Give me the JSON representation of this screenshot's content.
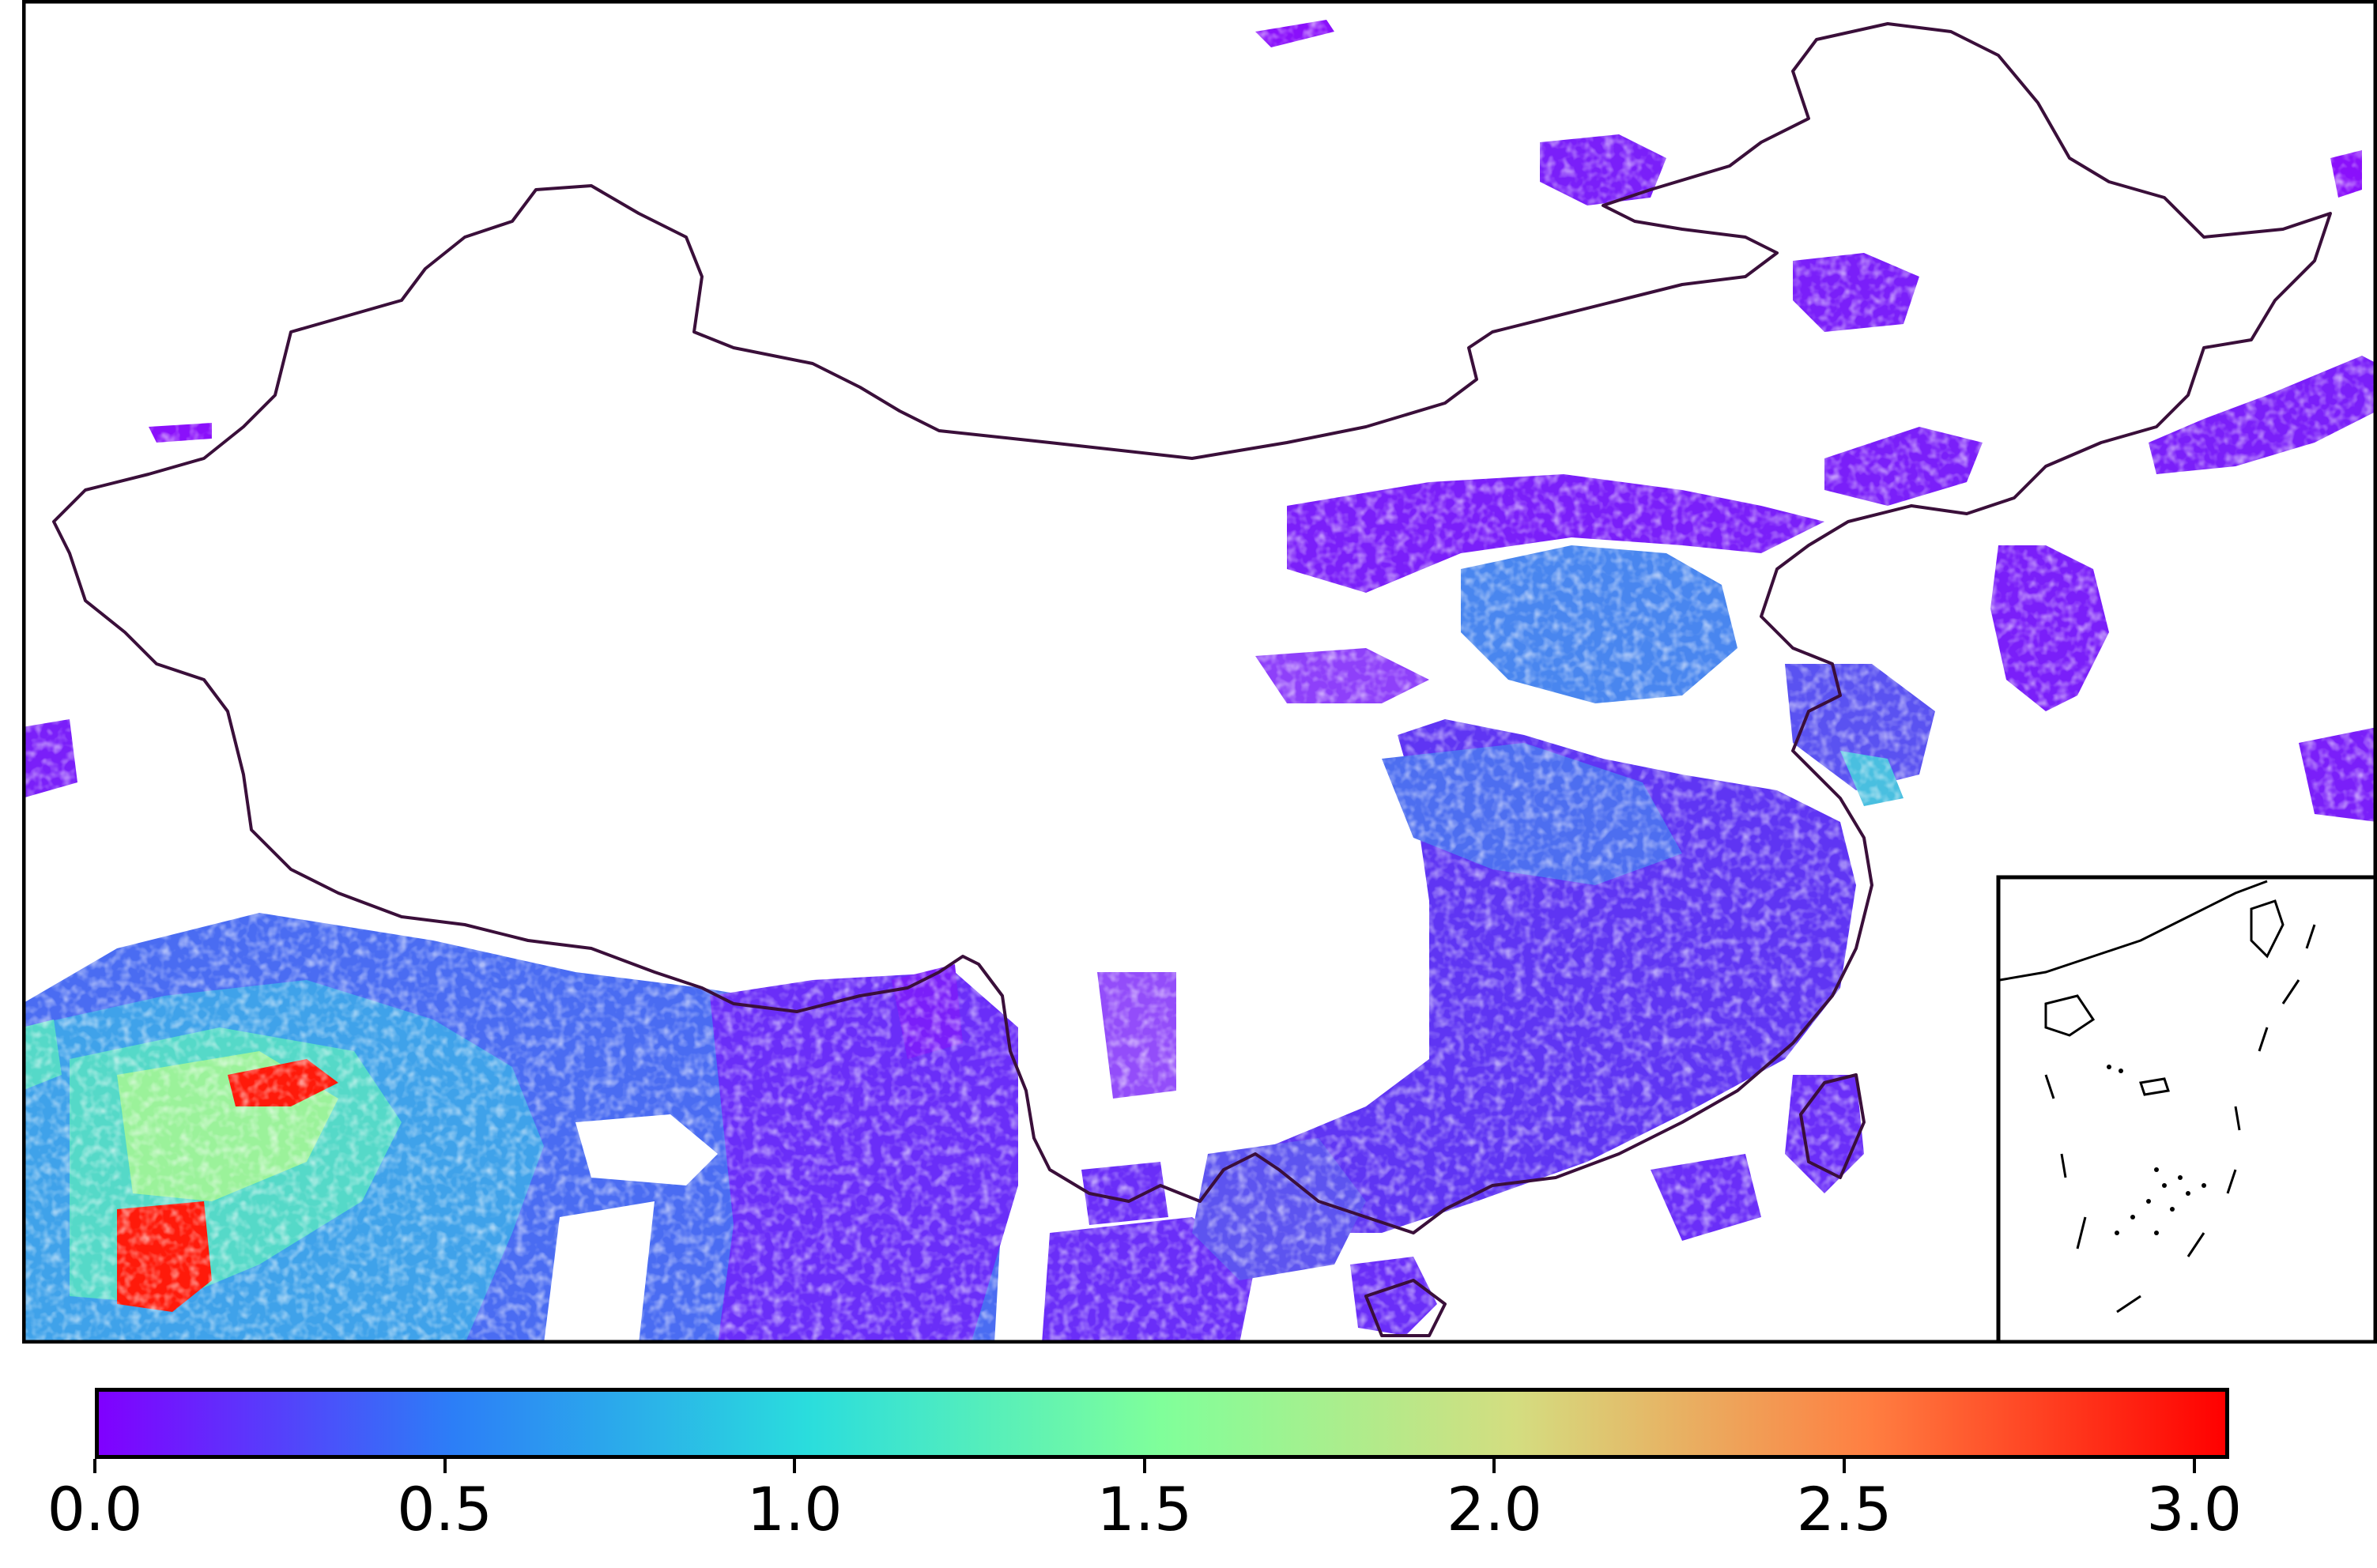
{
  "map": {
    "region": "China and surrounding East Asia",
    "field": "gridded raster, values colored by rainbow colormap",
    "boundary_color": "#3a0f3a",
    "inset": "South China Sea islands"
  },
  "colorbar": {
    "colormap": "rainbow",
    "vmin": 0.0,
    "vmax": 3.05,
    "stops": [
      "#8000ff",
      "#2c7ef7",
      "#2adddd",
      "#80ff9a",
      "#d4dd80",
      "#ff7e41",
      "#ff0000"
    ],
    "ticks": [
      "0.0",
      "0.5",
      "1.0",
      "1.5",
      "2.0",
      "2.5",
      "3.0"
    ],
    "tick_values": [
      0.0,
      0.5,
      1.0,
      1.5,
      2.0,
      2.5,
      3.0
    ]
  }
}
